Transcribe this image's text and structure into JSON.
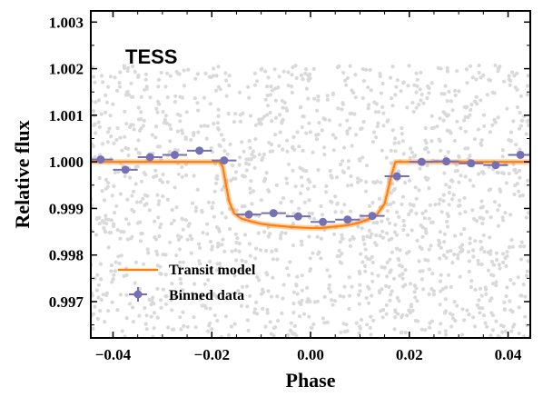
{
  "chart_data": {
    "type": "scatter",
    "title": "",
    "annotation": "TESS",
    "xlabel": "Phase",
    "ylabel": "Relative flux",
    "xlim": [
      -0.0445,
      0.0445
    ],
    "ylim": [
      0.99622,
      1.00324
    ],
    "x_ticks": [
      -0.04,
      -0.02,
      0.0,
      0.02,
      0.04
    ],
    "x_tick_labels": [
      "−0.04",
      "−0.02",
      "0.00",
      "0.02",
      "0.04"
    ],
    "y_ticks": [
      0.997,
      0.998,
      0.999,
      1.0,
      1.001,
      1.002,
      1.003
    ],
    "y_tick_labels": [
      "0.997",
      "0.998",
      "0.999",
      "1.000",
      "1.001",
      "1.002",
      "1.003"
    ],
    "grid": false,
    "legend_position": "lower-left",
    "colors": {
      "raw_points": "#d9d9d9",
      "model": "#ff7f0e",
      "binned": "#7570b3"
    },
    "series": [
      {
        "name": "Transit model",
        "kind": "line",
        "x": [
          -0.0445,
          -0.0185,
          -0.0178,
          -0.0172,
          -0.0165,
          -0.0155,
          -0.014,
          -0.012,
          -0.01,
          -0.008,
          -0.006,
          -0.004,
          -0.002,
          0.0,
          0.002,
          0.004,
          0.006,
          0.008,
          0.01,
          0.012,
          0.0135,
          0.015,
          0.0158,
          0.0165,
          0.0172,
          0.0445
        ],
        "y": [
          1.0,
          1.0,
          0.9999,
          0.99955,
          0.99915,
          0.9989,
          0.99878,
          0.99872,
          0.99867,
          0.99864,
          0.99862,
          0.9986,
          0.99859,
          0.99858,
          0.99858,
          0.9986,
          0.99862,
          0.99865,
          0.9987,
          0.99878,
          0.99888,
          0.9991,
          0.99945,
          0.99975,
          1.0,
          1.0
        ]
      },
      {
        "name": "Binned data",
        "kind": "errorbar",
        "x": [
          -0.0425,
          -0.0375,
          -0.0325,
          -0.0275,
          -0.0225,
          -0.0175,
          -0.0125,
          -0.0075,
          -0.0025,
          0.0025,
          0.0075,
          0.0125,
          0.0175,
          0.0225,
          0.0275,
          0.0325,
          0.0375,
          0.0425
        ],
        "y": [
          1.00005,
          0.99983,
          1.0001,
          1.00015,
          1.00024,
          1.00003,
          0.99887,
          0.9989,
          0.99883,
          0.99871,
          0.99876,
          0.99884,
          0.99969,
          1.0,
          1.00001,
          0.99997,
          0.99993,
          1.00015
        ],
        "xerr": 0.0025,
        "yerr": 8e-05
      }
    ]
  }
}
